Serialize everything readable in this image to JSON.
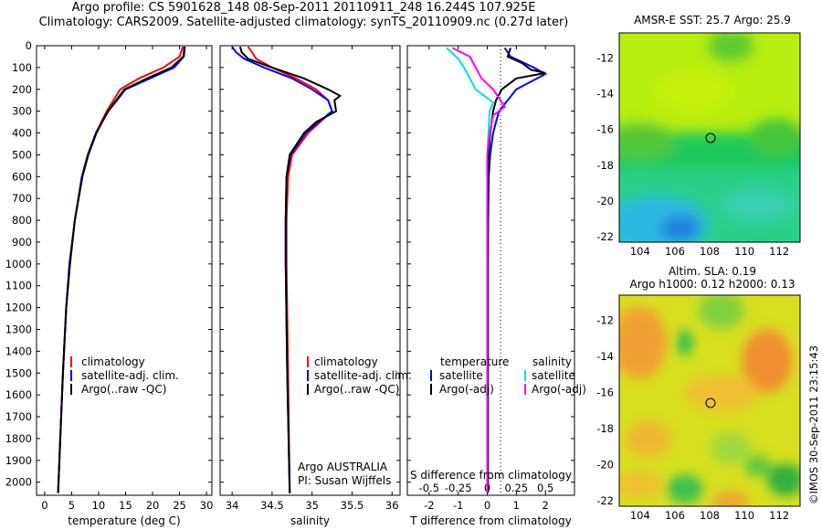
{
  "header": {
    "line1": "Argo profile: CS 5901628_148 08-Sep-2011 20110911_248 16.244S 107.925E",
    "line2": "Climatology: CARS2009. Satellite-adjusted climatology: synTS_20110909.nc (0.27d later)"
  },
  "colors": {
    "climatology": "#ff0000",
    "satellite": "#0000ff",
    "argo": "#000000",
    "sat_sal": "#00e0e0",
    "argo_sal": "#ff00ff"
  },
  "chart_data": [
    {
      "type": "line",
      "title": "",
      "xlabel": "temperature (deg C)",
      "ylabel": "",
      "xlim": [
        -1.5,
        31
      ],
      "ylim": [
        2060,
        0
      ],
      "xticks": [
        "0",
        "5",
        "10",
        "15",
        "20",
        "25",
        "30"
      ],
      "yticks": [
        "0",
        "100",
        "200",
        "300",
        "400",
        "500",
        "600",
        "700",
        "800",
        "900",
        "1000",
        "1100",
        "1200",
        "1300",
        "1400",
        "1500",
        "1600",
        "1700",
        "1800",
        "1900",
        "2000"
      ],
      "legend": [
        "climatology",
        "satellite-adj. clim.",
        "Argo(..raw -QC)"
      ],
      "series": [
        {
          "name": "climatology",
          "depth": [
            5,
            50,
            100,
            150,
            200,
            300,
            400,
            500,
            600,
            800,
            1000,
            1200,
            1500,
            1800,
            2050
          ],
          "values": [
            25.6,
            25.0,
            22.0,
            17.5,
            14.0,
            11.5,
            9.5,
            8.0,
            7.0,
            5.6,
            4.7,
            4.0,
            3.4,
            2.9,
            2.5
          ]
        },
        {
          "name": "satellite-adj. clim.",
          "depth": [
            5,
            50,
            100,
            150,
            200,
            300,
            400,
            500,
            600,
            800,
            1000,
            1200,
            1500,
            1800,
            2050
          ],
          "values": [
            26.0,
            25.8,
            24.0,
            19.5,
            15.0,
            11.8,
            9.5,
            8.0,
            6.9,
            5.6,
            4.6,
            4.0,
            3.4,
            2.9,
            2.5
          ]
        },
        {
          "name": "Argo(..raw -QC)",
          "depth": [
            5,
            50,
            100,
            150,
            200,
            300,
            400,
            500,
            600,
            800,
            1000,
            1200,
            1500,
            1800,
            2050
          ],
          "values": [
            25.9,
            25.7,
            23.5,
            19.0,
            14.8,
            11.7,
            9.6,
            8.1,
            7.0,
            5.6,
            4.7,
            4.0,
            3.4,
            2.9,
            2.5
          ]
        }
      ]
    },
    {
      "type": "line",
      "xlabel": "salinity",
      "xlim": [
        33.85,
        36.1
      ],
      "ylim": [
        2060,
        0
      ],
      "xticks": [
        "34",
        "34.5",
        "35",
        "35.5",
        "36"
      ],
      "legend": [
        "climatology",
        "satellite-adj. clim.",
        "Argo(..raw -QC)"
      ],
      "annotations": [
        "Argo AUSTRALIA",
        "PI: Susan Wijffels"
      ],
      "series": [
        {
          "name": "climatology",
          "depth": [
            5,
            30,
            60,
            100,
            150,
            200,
            250,
            300,
            350,
            400,
            500,
            600,
            800,
            1000,
            1500,
            2050
          ],
          "values": [
            34.2,
            34.25,
            34.3,
            34.5,
            34.8,
            35.05,
            35.2,
            35.25,
            35.1,
            34.95,
            34.75,
            34.7,
            34.68,
            34.68,
            34.7,
            34.72
          ]
        },
        {
          "name": "satellite-adj. clim.",
          "depth": [
            5,
            30,
            60,
            100,
            150,
            200,
            250,
            300,
            350,
            400,
            500,
            600,
            800,
            1000,
            1500,
            2050
          ],
          "values": [
            34.0,
            34.05,
            34.15,
            34.4,
            34.75,
            35.0,
            35.2,
            35.25,
            35.08,
            34.92,
            34.73,
            34.68,
            34.67,
            34.67,
            34.69,
            34.72
          ]
        },
        {
          "name": "Argo(..raw -QC)",
          "depth": [
            5,
            30,
            60,
            100,
            150,
            200,
            230,
            250,
            300,
            350,
            400,
            500,
            600,
            800,
            1000,
            1500,
            2050
          ],
          "values": [
            34.1,
            34.12,
            34.2,
            34.5,
            34.9,
            35.2,
            35.35,
            35.28,
            35.3,
            35.05,
            34.9,
            34.72,
            34.68,
            34.67,
            34.67,
            34.69,
            34.72
          ]
        }
      ]
    },
    {
      "type": "line",
      "xlabel": "T difference from climatology",
      "xlabel_top": "S difference from climatology",
      "xlim": [
        -2.75,
        3.0
      ],
      "ylim": [
        2060,
        0
      ],
      "xticks": [
        "-2",
        "-1",
        "0",
        "1",
        "2"
      ],
      "xticks_s": [
        "-0.5",
        "-0.25",
        "0",
        "0.25",
        "0.5"
      ],
      "legend_left_title": "temperature",
      "legend_right_title": "salinity",
      "legend_left": [
        "satellite",
        "Argo(-adj)"
      ],
      "legend_right": [
        "satellite",
        "Argo(-adj)"
      ],
      "series": [
        {
          "name": "T satellite",
          "depth": [
            10,
            50,
            100,
            130,
            200,
            300,
            400,
            500,
            600,
            800,
            1000,
            1500,
            2050
          ],
          "values": [
            0.6,
            0.8,
            1.6,
            2.0,
            1.0,
            0.4,
            0.2,
            0.1,
            0.05,
            0.03,
            0.02,
            0.02,
            0.02
          ]
        },
        {
          "name": "T Argo(-adj)",
          "depth": [
            10,
            50,
            80,
            110,
            125,
            150,
            200,
            250,
            300,
            400,
            500,
            600,
            800,
            1000,
            1500,
            2050
          ],
          "values": [
            0.8,
            0.7,
            1.2,
            1.5,
            2.0,
            1.0,
            0.5,
            0.3,
            0.2,
            0.1,
            0.05,
            0.03,
            0.02,
            0.02,
            0.02,
            0.02
          ]
        },
        {
          "name": "S satellite",
          "depth": [
            10,
            60,
            100,
            150,
            200,
            260,
            300,
            400,
            500,
            600,
            1000,
            2050
          ],
          "values": [
            -0.35,
            -0.25,
            -0.2,
            -0.15,
            -0.1,
            0.05,
            0.02,
            0.01,
            0.0,
            0.0,
            0.0,
            0.0
          ]
        },
        {
          "name": "S Argo(-adj)",
          "depth": [
            10,
            50,
            100,
            150,
            200,
            240,
            280,
            320,
            400,
            500,
            1000,
            2050
          ],
          "values": [
            -0.3,
            -0.15,
            -0.1,
            -0.05,
            0.05,
            0.1,
            0.15,
            0.05,
            0.02,
            0.0,
            0.0,
            0.0
          ]
        }
      ]
    },
    {
      "type": "heatmap",
      "title": "AMSR-E SST: 25.7 Argo: 25.9",
      "xticks": [
        "104",
        "106",
        "108",
        "110",
        "112"
      ],
      "yticks": [
        "-12",
        "-14",
        "-16",
        "-18",
        "-20",
        "-22"
      ],
      "marker": {
        "lon": 107.925,
        "lat": -16.244
      }
    },
    {
      "type": "heatmap",
      "title_line1": "Altim. SLA: 0.19",
      "title_line2": "Argo h1000: 0.12 h2000: 0.13",
      "xticks": [
        "104",
        "106",
        "108",
        "110",
        "112"
      ],
      "yticks": [
        "-12",
        "-14",
        "-16",
        "-18",
        "-20",
        "-22"
      ],
      "marker": {
        "lon": 107.925,
        "lat": -16.244
      }
    }
  ],
  "footer": {
    "credit": "©IMOS 30-Sep-2011 23:15:43"
  }
}
